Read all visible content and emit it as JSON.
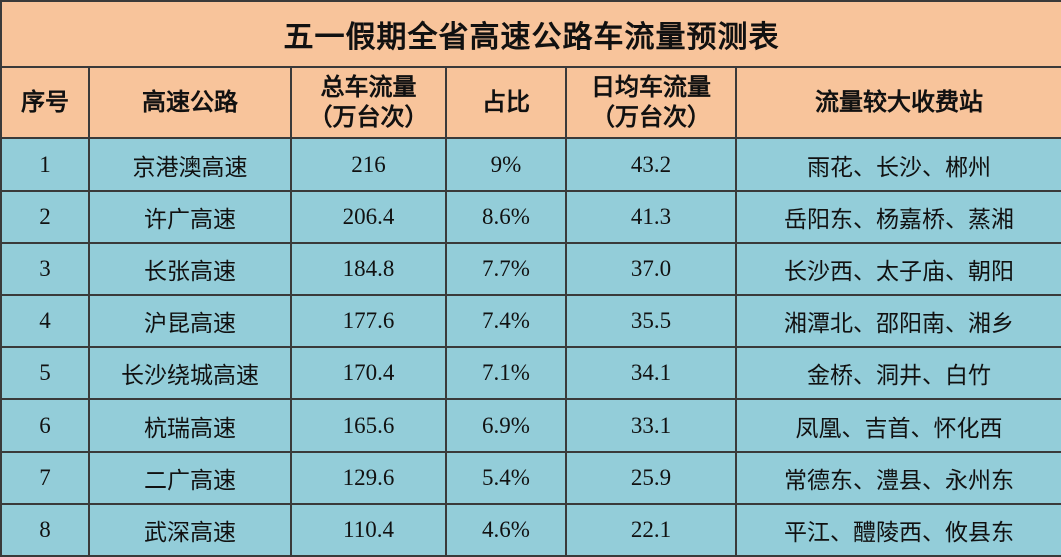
{
  "table": {
    "title": "五一假期全省高速公路车流量预测表",
    "header": [
      "序号",
      "高速公路",
      {
        "text": "总车流量",
        "unit": "（万台次）"
      },
      "占比",
      {
        "text": "日均车流量",
        "unit": "（万台次）"
      },
      "流量较大收费站"
    ],
    "rows": [
      [
        "1",
        "京港澳高速",
        "216",
        "9%",
        "43.2",
        "雨花、长沙、郴州"
      ],
      [
        "2",
        "许广高速",
        "206.4",
        "8.6%",
        "41.3",
        "岳阳东、杨嘉桥、蒸湘"
      ],
      [
        "3",
        "长张高速",
        "184.8",
        "7.7%",
        "37.0",
        "长沙西、太子庙、朝阳"
      ],
      [
        "4",
        "沪昆高速",
        "177.6",
        "7.4%",
        "35.5",
        "湘潭北、邵阳南、湘乡"
      ],
      [
        "5",
        "长沙绕城高速",
        "170.4",
        "7.1%",
        "34.1",
        "金桥、洞井、白竹"
      ],
      [
        "6",
        "杭瑞高速",
        "165.6",
        "6.9%",
        "33.1",
        "凤凰、吉首、怀化西"
      ],
      [
        "7",
        "二广高速",
        "129.6",
        "5.4%",
        "25.9",
        "常德东、澧县、永州东"
      ],
      [
        "8",
        "武深高速",
        "110.4",
        "4.6%",
        "22.1",
        "平江、醴陵西、攸县东"
      ]
    ]
  }
}
